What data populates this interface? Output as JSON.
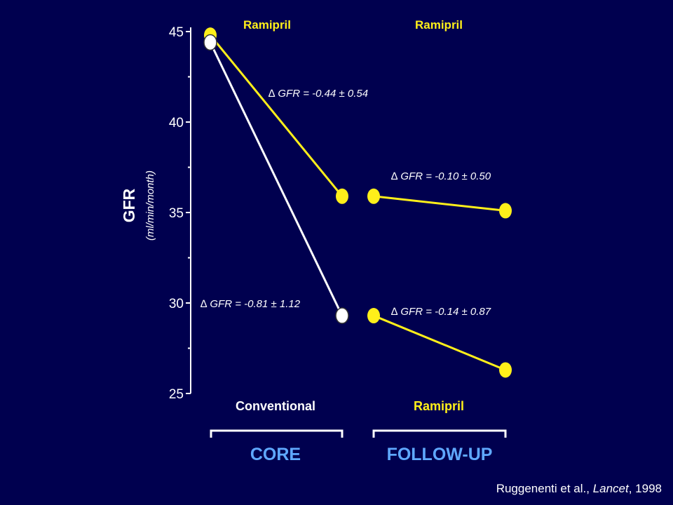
{
  "colors": {
    "background": "#00004f",
    "axis": "#ffffff",
    "ramipril": "#ffef1a",
    "conventional": "#ffffff",
    "label_yellow": "#ffef1a",
    "phase_label": "#5fa8ff",
    "text": "#ffffff"
  },
  "chart_data": {
    "type": "line",
    "ylabel": "GFR",
    "ylabel_unit": "(ml/min/month)",
    "ylim": [
      25,
      45
    ],
    "yticks": [
      "25",
      "30",
      "35",
      "40",
      "45"
    ],
    "header_labels": [
      "Ramipril",
      "Ramipril"
    ],
    "group_labels": [
      "Conventional",
      "Ramipril"
    ],
    "phases": [
      "CORE",
      "FOLLOW-UP"
    ],
    "grid": false,
    "legend": "none",
    "series": [
      {
        "phase": "CORE",
        "treatment": "Ramipril",
        "color": "#ffef1a",
        "x": [
          0,
          1
        ],
        "values": [
          44.8,
          35.9
        ],
        "annotation": "GFR = -0.44 ± 0.54"
      },
      {
        "phase": "CORE",
        "treatment": "Conventional",
        "color": "#ffffff",
        "x": [
          0,
          1
        ],
        "values": [
          44.4,
          29.3
        ],
        "annotation": "GFR = -0.81 ± 1.12"
      },
      {
        "phase": "FOLLOW-UP",
        "treatment": "Ramipril",
        "color": "#ffef1a",
        "x": [
          0,
          1
        ],
        "values": [
          35.9,
          35.1
        ],
        "annotation": "GFR = -0.10 ± 0.50"
      },
      {
        "phase": "FOLLOW-UP",
        "treatment": "Ramipril",
        "color": "#ffef1a",
        "x": [
          0,
          1
        ],
        "values": [
          29.3,
          26.3
        ],
        "annotation": "GFR = -0.14 ± 0.87"
      }
    ],
    "delta_symbol": "∆"
  },
  "citation": {
    "authors": "Ruggenenti et al., ",
    "journal": "Lancet",
    "year": ", 1998"
  }
}
